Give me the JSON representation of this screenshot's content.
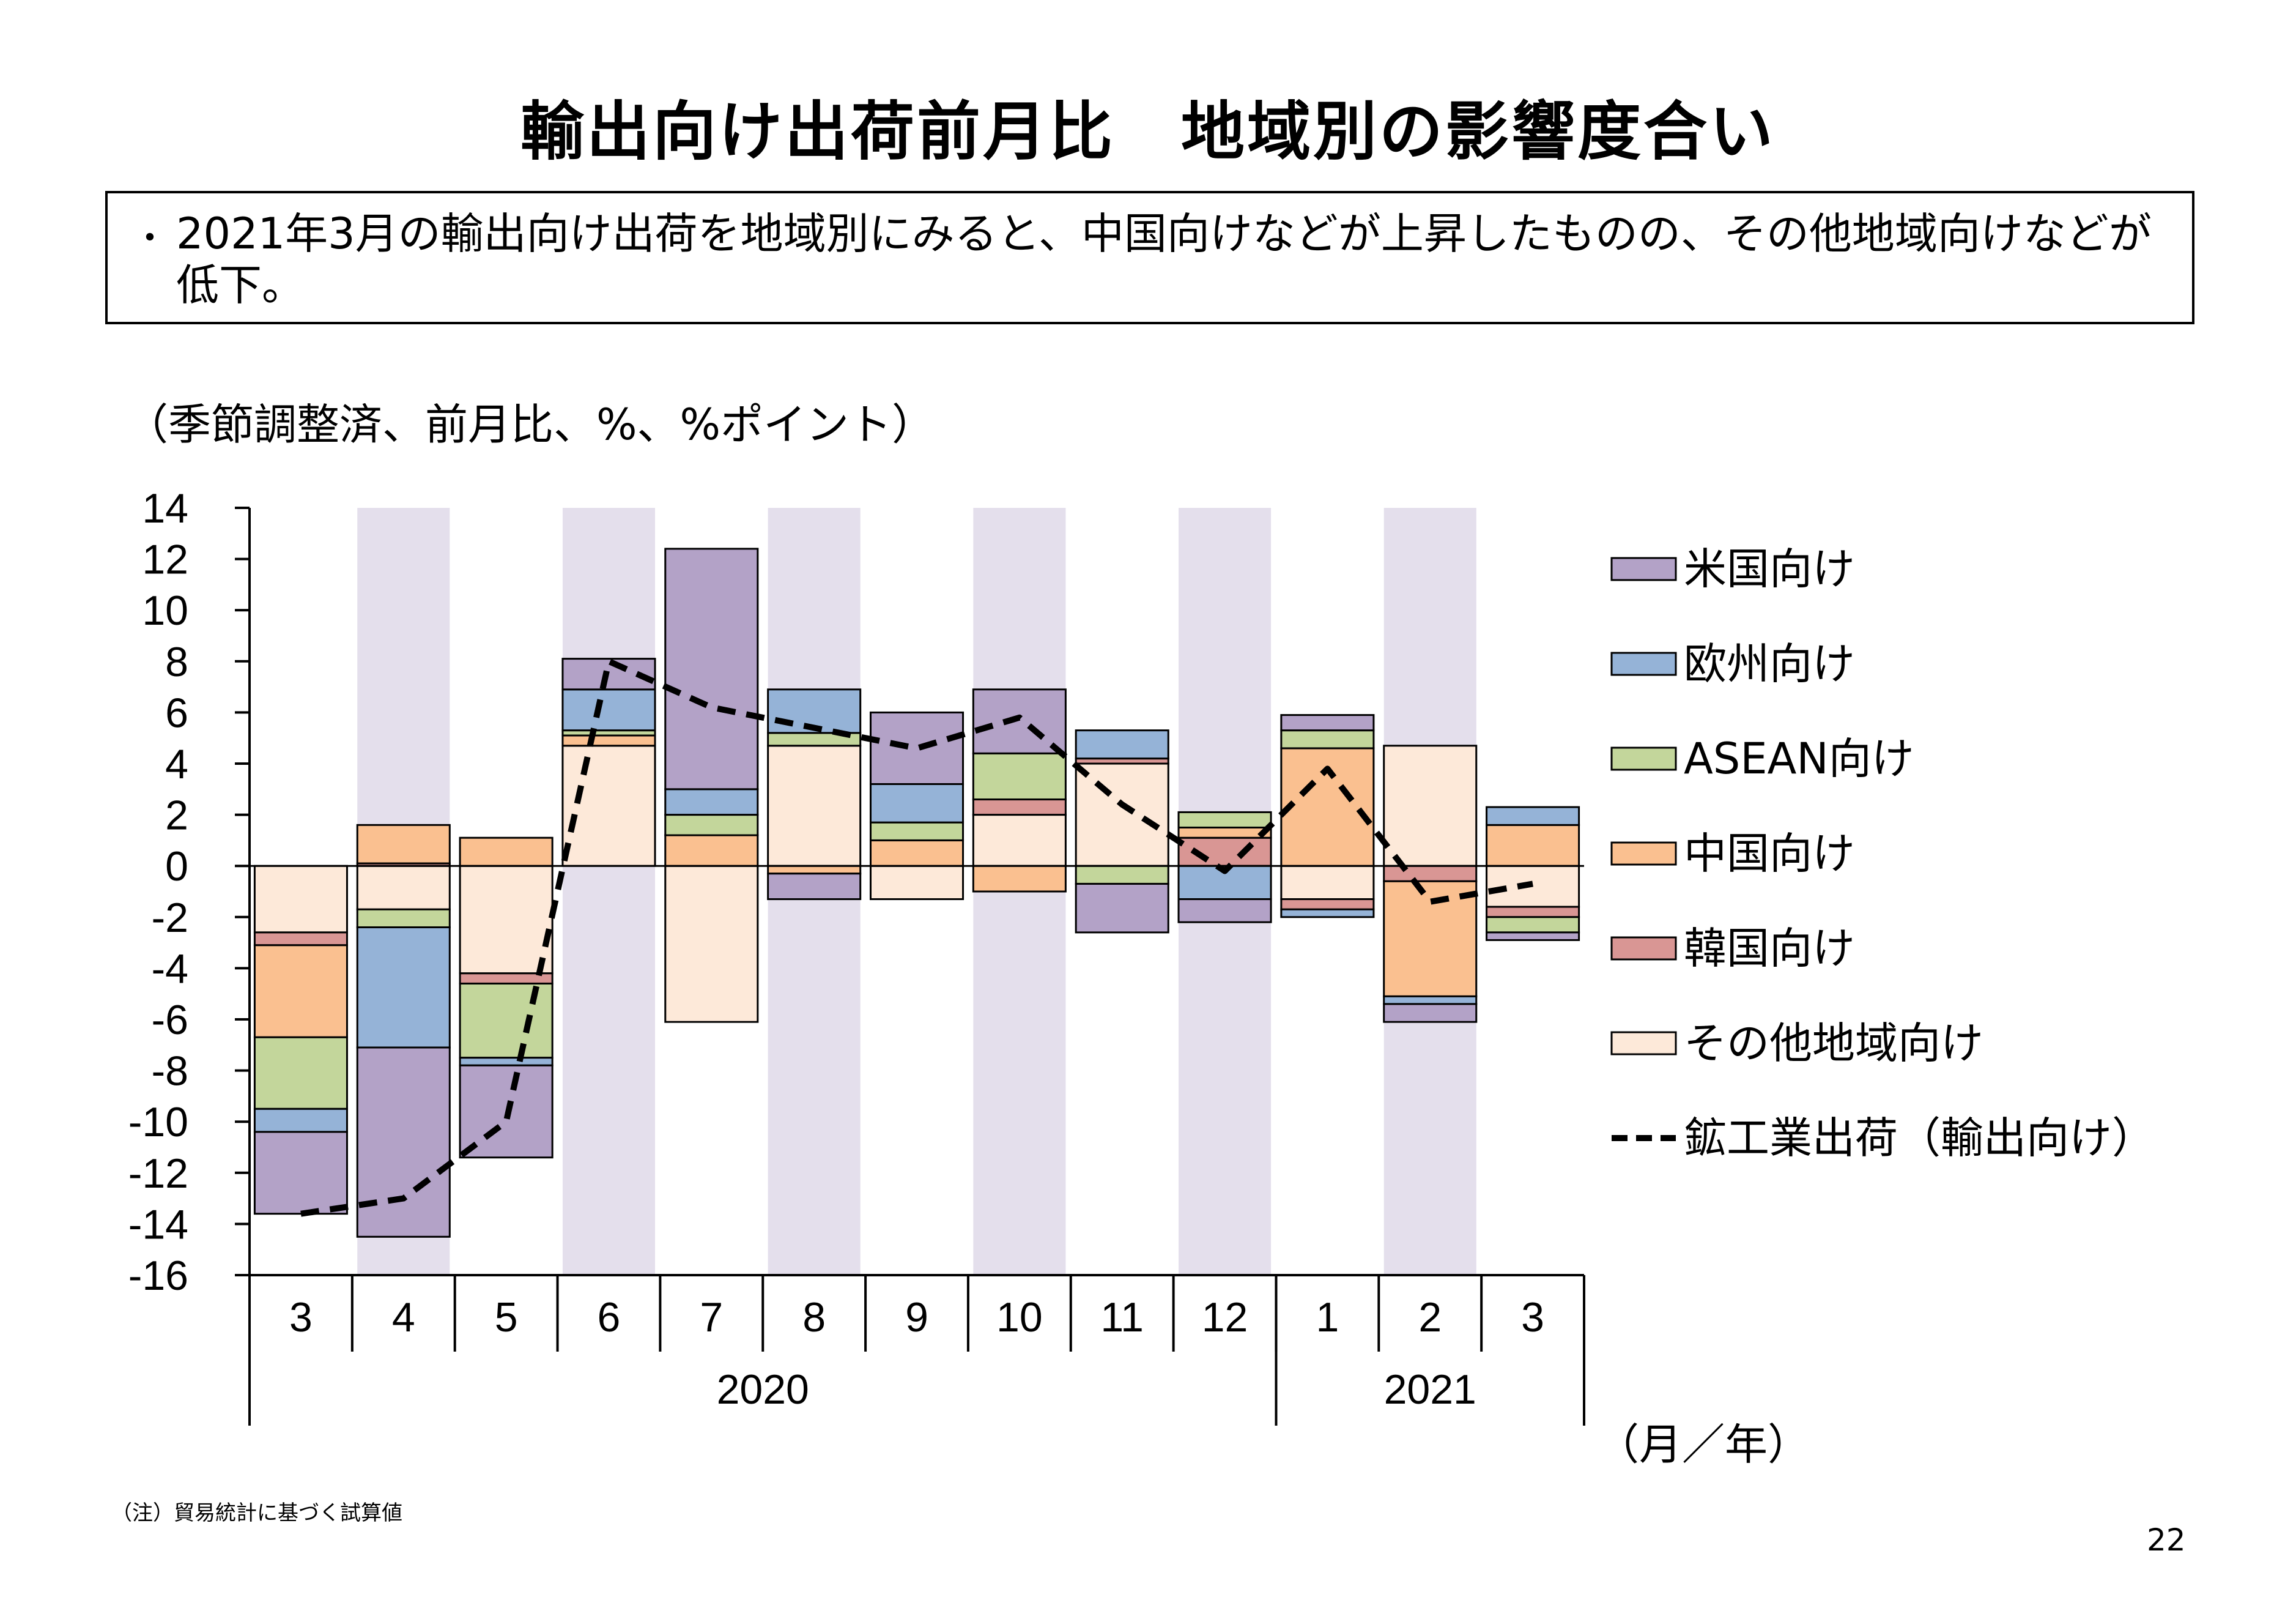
{
  "header": {
    "title": "輸出向け出荷前月比　地域別の影響度合い",
    "bullet": "・",
    "summary": "2021年3月の輸出向け出荷を地域別にみると、中国向けなどが上昇したものの、その他地域向けなどが低下。"
  },
  "unit_note": "（季節調整済、前月比、%、%ポイント）",
  "footnote": "（注）貿易統計に基づく試算値",
  "page_number": "22",
  "colors": {
    "us": "#b3a2c7",
    "eu": "#95b3d7",
    "asean": "#c3d69b",
    "china": "#fac090",
    "korea": "#d99694",
    "other": "#fde9d9",
    "line": "#000000",
    "band": "#e4dfec"
  },
  "chart_data": {
    "type": "bar",
    "stacked": true,
    "ylim": [
      -16,
      14
    ],
    "yticks": [
      14,
      12,
      10,
      8,
      6,
      4,
      2,
      0,
      -2,
      -4,
      -6,
      -8,
      -10,
      -12,
      -14,
      -16
    ],
    "categories": [
      "3",
      "4",
      "5",
      "6",
      "7",
      "8",
      "9",
      "10",
      "11",
      "12",
      "1",
      "2",
      "3"
    ],
    "year_groups": [
      {
        "label": "2020",
        "span": 10
      },
      {
        "label": "2021",
        "span": 3
      }
    ],
    "x_unit_label": "（月／年）",
    "series": [
      {
        "name": "その他地域向け",
        "key": "other",
        "values": [
          -2.6,
          -1.7,
          -4.2,
          4.7,
          -6.1,
          4.7,
          -1.3,
          2.0,
          4.0,
          0.0,
          -1.3,
          4.7,
          -1.6
        ]
      },
      {
        "name": "韓国向け",
        "key": "korea",
        "values": [
          -0.5,
          0.1,
          -0.4,
          0.0,
          0.0,
          0.0,
          0.0,
          0.6,
          0.2,
          1.1,
          -0.4,
          -0.6,
          -0.4
        ]
      },
      {
        "name": "中国向け",
        "key": "china",
        "values": [
          -3.6,
          1.5,
          1.1,
          0.4,
          1.2,
          -0.3,
          1.0,
          -1.0,
          0.0,
          0.4,
          4.6,
          -4.5,
          1.6
        ]
      },
      {
        "name": "ASEAN向け",
        "key": "asean",
        "values": [
          -2.8,
          -0.7,
          -2.9,
          0.2,
          0.8,
          0.5,
          0.7,
          1.8,
          -0.7,
          0.6,
          0.7,
          0.0,
          -0.6
        ]
      },
      {
        "name": "欧州向け",
        "key": "eu",
        "values": [
          -0.9,
          -4.7,
          -0.3,
          1.6,
          1.0,
          1.7,
          1.5,
          0.0,
          1.1,
          -1.3,
          -0.3,
          -0.3,
          0.7
        ]
      },
      {
        "name": "米国向け",
        "key": "us",
        "values": [
          -3.2,
          -7.4,
          -3.6,
          1.2,
          9.4,
          -1.0,
          2.8,
          2.5,
          -1.9,
          -0.9,
          0.6,
          -0.7,
          -0.3
        ]
      }
    ],
    "line": {
      "name": "鉱工業出荷（輸出向け）",
      "values": [
        -13.6,
        -13.0,
        -10.0,
        8.0,
        6.2,
        5.4,
        4.6,
        5.8,
        2.4,
        -0.2,
        3.8,
        -1.4,
        -0.7
      ]
    },
    "legend_order": [
      "us",
      "eu",
      "asean",
      "china",
      "korea",
      "other",
      "line"
    ],
    "legend_placement": "right"
  }
}
